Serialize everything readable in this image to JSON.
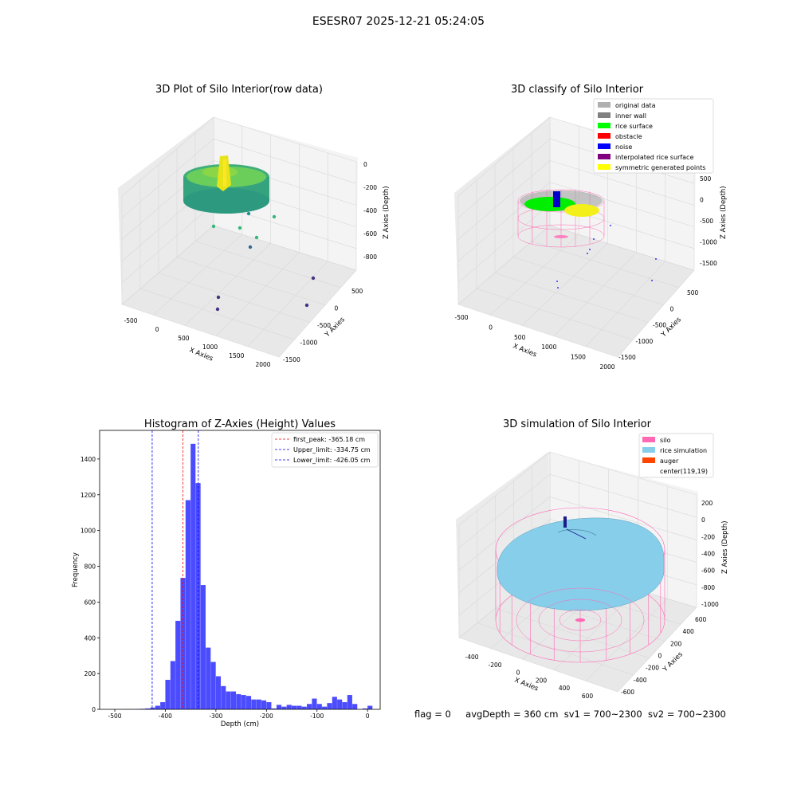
{
  "suptitle": "ESESR07 2025-12-21 05:24:05",
  "footer": {
    "flag": "flag = 0",
    "avg": "avgDepth = 360 cm",
    "sv1": "sv1 = 700~2300",
    "sv2": "sv2 = 700~2300"
  },
  "chart_data": [
    {
      "type": "scatter",
      "title": "3D Plot of Silo Interior(row data)",
      "xlabel": "X Axies",
      "ylabel": "Y Axies",
      "zlabel": "Z Axies (Depth)",
      "x_ticks": [
        "-500",
        "0",
        "500",
        "1000",
        "1500",
        "2000"
      ],
      "y_ticks": [
        "500",
        "0",
        "-500",
        "-1000",
        "-1500"
      ],
      "z_ticks": [
        "0",
        "-200",
        "-400",
        "-600",
        "-800"
      ],
      "xlim": [
        -600,
        2000
      ],
      "ylim": [
        -1500,
        600
      ],
      "zlim": [
        -900,
        0
      ]
    },
    {
      "type": "scatter",
      "title": "3D classify of Silo Interior",
      "xlabel": "X Axies",
      "ylabel": "Y Axies",
      "zlabel": "Z Axies (Depth)",
      "x_ticks": [
        "-500",
        "0",
        "500",
        "1000",
        "1500",
        "2000"
      ],
      "y_ticks": [
        "500",
        "0",
        "-500",
        "-1000",
        "-1500"
      ],
      "z_ticks": [
        "500",
        "0",
        "-500",
        "-1000",
        "-1500"
      ],
      "legend": [
        {
          "label": "original data",
          "color": "#b0b0b0"
        },
        {
          "label": "inner wall",
          "color": "#808080"
        },
        {
          "label": "rice surface",
          "color": "#00ff00"
        },
        {
          "label": "obstacle",
          "color": "#ff0000"
        },
        {
          "label": "noise",
          "color": "#0000ff"
        },
        {
          "label": "interpolated rice surface",
          "color": "#800080"
        },
        {
          "label": "symmetric generated points",
          "color": "#ffff00"
        }
      ],
      "legend_position": "top-right"
    },
    {
      "type": "bar",
      "title": "Histogram of Z-Axies (Height) Values",
      "xlabel": "Depth (cm)",
      "ylabel": "Frequency",
      "x_ticks": [
        -500,
        -400,
        -300,
        -200,
        -100,
        0
      ],
      "y_ticks": [
        0,
        200,
        400,
        600,
        800,
        1000,
        1200,
        1400
      ],
      "xlim": [
        -530,
        25
      ],
      "ylim": [
        0,
        1560
      ],
      "bin_start": -480,
      "bin_width": 10,
      "values": [
        1,
        1,
        2,
        3,
        5,
        10,
        20,
        40,
        165,
        270,
        495,
        735,
        1170,
        1485,
        1265,
        695,
        345,
        265,
        185,
        130,
        100,
        100,
        85,
        80,
        75,
        55,
        55,
        50,
        40,
        5,
        25,
        15,
        25,
        20,
        20,
        15,
        30,
        60,
        30,
        15,
        35,
        70,
        55,
        40,
        80,
        30,
        0,
        5,
        20
      ],
      "bar_color": "#0000ff",
      "vlines": [
        {
          "label": "first_peak: -365.18 cm",
          "x": -365.18,
          "color": "#ff0000"
        },
        {
          "label": "Upper_limit: -334.75 cm",
          "x": -334.75,
          "color": "#0000ff"
        },
        {
          "label": "Lower_limit: -426.05 cm",
          "x": -426.05,
          "color": "#0000ff"
        }
      ],
      "legend_position": "top-right"
    },
    {
      "type": "surface",
      "title": "3D simulation of Silo Interior",
      "xlabel": "X Axies",
      "ylabel": "Y Axies",
      "zlabel": "Z Axies (Depth)",
      "x_ticks": [
        "-400",
        "-200",
        "0",
        "200",
        "400",
        "600"
      ],
      "y_ticks": [
        "600",
        "400",
        "200",
        "0",
        "-200",
        "-400",
        "-600"
      ],
      "z_ticks": [
        "200",
        "0",
        "-200",
        "-400",
        "-600",
        "-800",
        "-1000"
      ],
      "legend": [
        {
          "label": "silo",
          "color": "#ff69b4"
        },
        {
          "label": "rice simulation",
          "color": "#87ceeb"
        },
        {
          "label": "auger",
          "color": "#ff4500"
        },
        {
          "label": "center(119,19)",
          "color": "#ffffff"
        }
      ],
      "legend_position": "top-right"
    }
  ]
}
